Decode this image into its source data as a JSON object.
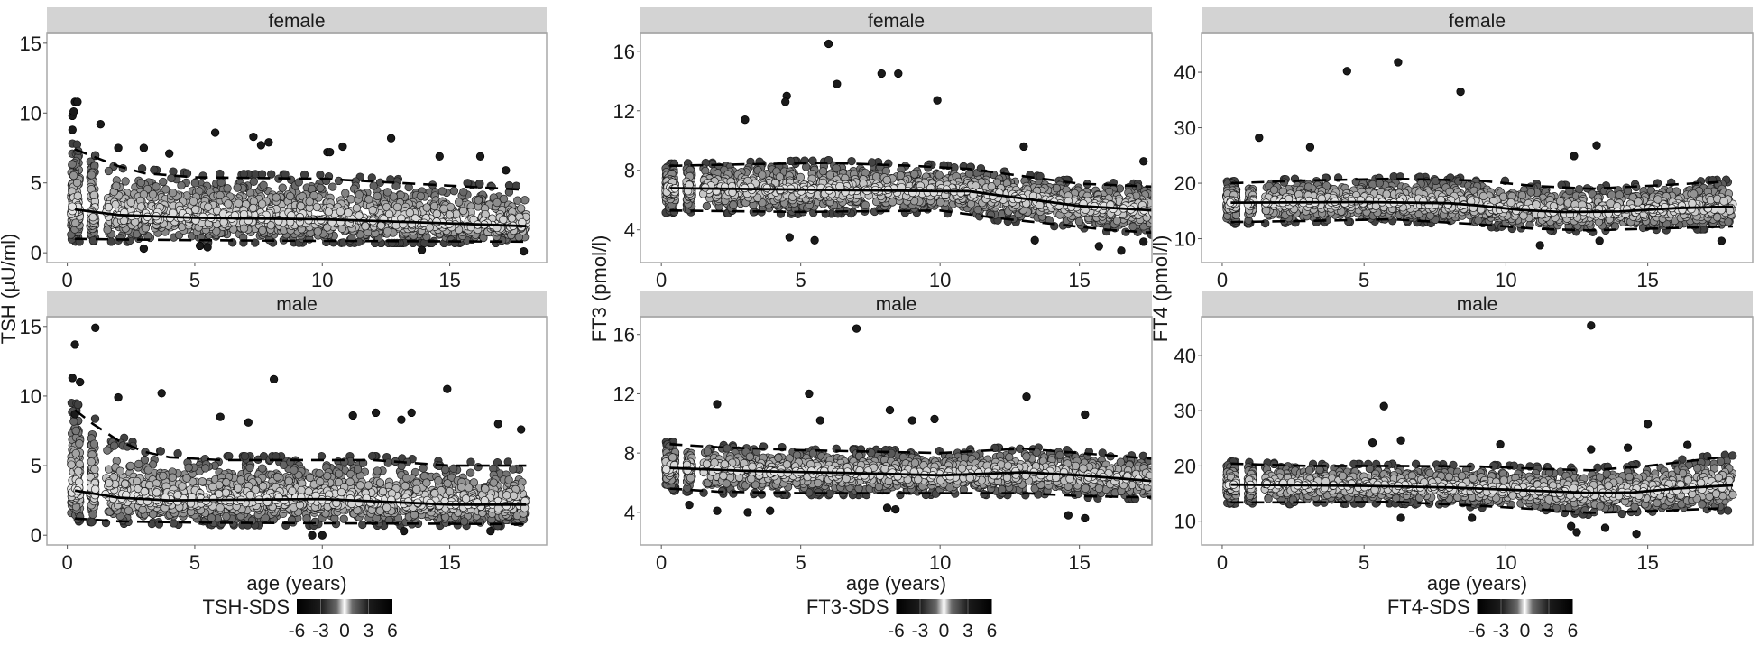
{
  "chart_data": [
    {
      "type": "scatter",
      "ylabel": "TSH (µU/ml)",
      "xlabel": "age (years)",
      "xlim": [
        -0.8,
        18.8
      ],
      "ylim": [
        -0.7,
        15.7
      ],
      "xticks": [
        "0",
        "5",
        "10",
        "15"
      ],
      "xtick_values": [
        0,
        5,
        10,
        15
      ],
      "yticks": [
        "0",
        "5",
        "10",
        "15"
      ],
      "ytick_values": [
        0,
        5,
        10,
        15
      ],
      "grid": false,
      "legend": {
        "title": "TSH-SDS",
        "ticks": [
          "-6",
          "-3",
          "0",
          "3",
          "6"
        ],
        "tick_values": [
          -6,
          -3,
          0,
          3,
          6
        ],
        "placement": "bottom",
        "colors": [
          "#000000",
          "#ffffff",
          "#000000"
        ]
      },
      "facets": [
        {
          "label": "female",
          "median": [
            [
              0.3,
              3.1
            ],
            [
              2,
              2.7
            ],
            [
              5,
              2.5
            ],
            [
              10,
              2.4
            ],
            [
              15,
              2.1
            ],
            [
              18,
              1.9
            ]
          ],
          "upper_dashed": [
            [
              0.3,
              7.4
            ],
            [
              1,
              6.9
            ],
            [
              2,
              6.2
            ],
            [
              3,
              5.7
            ],
            [
              5,
              5.4
            ],
            [
              10,
              5.3
            ],
            [
              13,
              5.0
            ],
            [
              15,
              4.8
            ],
            [
              18,
              4.5
            ]
          ],
          "lower_dashed": [
            [
              0.3,
              1.0
            ],
            [
              2,
              0.95
            ],
            [
              5,
              0.9
            ],
            [
              10,
              0.85
            ],
            [
              18,
              0.8
            ]
          ],
          "outliers": [
            [
              0.2,
              9.8
            ],
            [
              0.25,
              10.1
            ],
            [
              0.3,
              10.8
            ],
            [
              0.4,
              10.8
            ],
            [
              0.2,
              8.8
            ],
            [
              1.3,
              9.2
            ],
            [
              5.8,
              8.6
            ],
            [
              7.3,
              8.3
            ],
            [
              7.6,
              7.7
            ],
            [
              7.9,
              7.9
            ],
            [
              10.2,
              7.2
            ],
            [
              10.3,
              7.2
            ],
            [
              10.8,
              7.6
            ],
            [
              12.7,
              8.2
            ],
            [
              14.6,
              6.9
            ],
            [
              16.2,
              6.9
            ],
            [
              3,
              7.5
            ],
            [
              2,
              7.5
            ],
            [
              4,
              7.1
            ],
            [
              17.2,
              5.9
            ],
            [
              17.9,
              0.1
            ],
            [
              13.9,
              0.2
            ],
            [
              3,
              0.3
            ],
            [
              5.5,
              0.4
            ],
            [
              5.2,
              0.5
            ]
          ]
        },
        {
          "label": "male",
          "median": [
            [
              0.3,
              3.2
            ],
            [
              2,
              2.7
            ],
            [
              4,
              2.5
            ],
            [
              10,
              2.6
            ],
            [
              15,
              2.2
            ],
            [
              18,
              2.2
            ]
          ],
          "upper_dashed": [
            [
              0.3,
              9.0
            ],
            [
              1,
              8.0
            ],
            [
              2,
              6.8
            ],
            [
              3,
              6.0
            ],
            [
              4,
              5.6
            ],
            [
              6,
              5.4
            ],
            [
              12,
              5.4
            ],
            [
              15,
              5.0
            ],
            [
              18,
              5.0
            ]
          ],
          "lower_dashed": [
            [
              0.3,
              1.2
            ],
            [
              2,
              1.0
            ],
            [
              5,
              0.9
            ],
            [
              18,
              0.8
            ]
          ],
          "outliers": [
            [
              0.3,
              13.7
            ],
            [
              1.1,
              14.9
            ],
            [
              0.2,
              11.3
            ],
            [
              0.5,
              11.0
            ],
            [
              0.3,
              8.7
            ],
            [
              2,
              9.9
            ],
            [
              3.7,
              10.2
            ],
            [
              8.1,
              11.2
            ],
            [
              14.9,
              10.5
            ],
            [
              6,
              8.5
            ],
            [
              7.1,
              8.1
            ],
            [
              11.2,
              8.6
            ],
            [
              12.1,
              8.8
            ],
            [
              13.1,
              8.3
            ],
            [
              13.5,
              8.8
            ],
            [
              16.9,
              8.0
            ],
            [
              17.8,
              7.6
            ],
            [
              9.6,
              0.0
            ],
            [
              10,
              0.0
            ],
            [
              13.2,
              0.3
            ],
            [
              16.6,
              0.3
            ]
          ]
        }
      ]
    },
    {
      "type": "scatter",
      "ylabel": "FT3 (pmol/l)",
      "xlabel": "age (years)",
      "xlim": [
        -0.75,
        17.6
      ],
      "ylim": [
        1.8,
        17.2
      ],
      "xticks": [
        "0",
        "5",
        "10",
        "15"
      ],
      "xtick_values": [
        0,
        5,
        10,
        15
      ],
      "yticks": [
        "4",
        "8",
        "12",
        "16"
      ],
      "ytick_values": [
        4,
        8,
        12,
        16
      ],
      "grid": false,
      "legend": {
        "title": "FT3-SDS",
        "ticks": [
          "-6",
          "-3",
          "0",
          "3",
          "6"
        ],
        "tick_values": [
          -6,
          -3,
          0,
          3,
          6
        ],
        "placement": "bottom",
        "colors": [
          "#000000",
          "#ffffff",
          "#000000"
        ]
      },
      "facets": [
        {
          "label": "female",
          "median": [
            [
              0.3,
              6.8
            ],
            [
              5,
              6.7
            ],
            [
              10,
              6.6
            ],
            [
              11,
              6.6
            ],
            [
              13,
              6.1
            ],
            [
              15,
              5.6
            ],
            [
              17.7,
              5.3
            ]
          ],
          "upper_dashed": [
            [
              0.3,
              8.3
            ],
            [
              3,
              8.4
            ],
            [
              6,
              8.5
            ],
            [
              9,
              8.3
            ],
            [
              11,
              8.1
            ],
            [
              13,
              7.6
            ],
            [
              15,
              7.1
            ],
            [
              17.7,
              6.9
            ]
          ],
          "lower_dashed": [
            [
              0.3,
              5.3
            ],
            [
              5,
              5.2
            ],
            [
              10,
              5.3
            ],
            [
              12,
              4.8
            ],
            [
              14,
              4.4
            ],
            [
              16,
              4.0
            ],
            [
              17.7,
              3.8
            ]
          ],
          "outliers": [
            [
              6.0,
              16.5
            ],
            [
              6.3,
              13.8
            ],
            [
              7.9,
              14.5
            ],
            [
              8.5,
              14.5
            ],
            [
              4.5,
              13.0
            ],
            [
              4.45,
              12.6
            ],
            [
              3.0,
              11.4
            ],
            [
              9.9,
              12.7
            ],
            [
              13.0,
              9.6
            ],
            [
              17.3,
              8.6
            ],
            [
              4.6,
              3.5
            ],
            [
              5.5,
              3.3
            ],
            [
              13.4,
              3.3
            ],
            [
              15.7,
              2.9
            ],
            [
              16.5,
              2.6
            ],
            [
              17.3,
              3.2
            ]
          ]
        },
        {
          "label": "male",
          "median": [
            [
              0.3,
              7.0
            ],
            [
              3,
              6.8
            ],
            [
              8,
              6.6
            ],
            [
              10,
              6.5
            ],
            [
              13,
              6.7
            ],
            [
              15,
              6.5
            ],
            [
              17.7,
              6.1
            ]
          ],
          "upper_dashed": [
            [
              0.3,
              8.6
            ],
            [
              2,
              8.4
            ],
            [
              5,
              8.2
            ],
            [
              10,
              8.0
            ],
            [
              13,
              8.3
            ],
            [
              15,
              8.0
            ],
            [
              17.7,
              7.6
            ]
          ],
          "lower_dashed": [
            [
              0.3,
              5.6
            ],
            [
              2,
              5.4
            ],
            [
              5,
              5.3
            ],
            [
              10,
              5.3
            ],
            [
              13,
              5.3
            ],
            [
              15,
              5.1
            ],
            [
              17.7,
              5.0
            ]
          ],
          "outliers": [
            [
              7.0,
              16.4
            ],
            [
              5.3,
              12.0
            ],
            [
              13.1,
              11.8
            ],
            [
              2.0,
              11.3
            ],
            [
              8.2,
              10.9
            ],
            [
              5.7,
              10.2
            ],
            [
              9.0,
              10.2
            ],
            [
              15.2,
              10.6
            ],
            [
              9.8,
              10.3
            ],
            [
              14.6,
              3.8
            ],
            [
              15.2,
              3.6
            ],
            [
              3.1,
              4.0
            ],
            [
              3.9,
              4.1
            ],
            [
              2.0,
              4.1
            ],
            [
              1.0,
              4.5
            ],
            [
              8.1,
              4.3
            ],
            [
              8.4,
              4.2
            ]
          ]
        }
      ]
    },
    {
      "type": "scatter",
      "ylabel": "FT4 (pmol/l)",
      "xlabel": "age (years)",
      "xlim": [
        -0.73,
        18.7
      ],
      "ylim": [
        5.7,
        47
      ],
      "xticks": [
        "0",
        "5",
        "10",
        "15"
      ],
      "xtick_values": [
        0,
        5,
        10,
        15
      ],
      "yticks": [
        "10",
        "20",
        "30",
        "40"
      ],
      "ytick_values": [
        10,
        20,
        30,
        40
      ],
      "grid": false,
      "legend": {
        "title": "FT4-SDS",
        "ticks": [
          "-6",
          "-3",
          "0",
          "3",
          "6"
        ],
        "tick_values": [
          -6,
          -3,
          0,
          3,
          6
        ],
        "placement": "bottom",
        "colors": [
          "#000000",
          "#ffffff",
          "#000000"
        ]
      },
      "facets": [
        {
          "label": "female",
          "median": [
            [
              0.3,
              16.5
            ],
            [
              5,
              16.6
            ],
            [
              8,
              16.4
            ],
            [
              9,
              16.0
            ],
            [
              10.5,
              15.2
            ],
            [
              12,
              14.8
            ],
            [
              14,
              14.9
            ],
            [
              16,
              15.5
            ],
            [
              18,
              15.8
            ]
          ],
          "upper_dashed": [
            [
              0.3,
              20.0
            ],
            [
              3,
              20.5
            ],
            [
              6,
              20.8
            ],
            [
              9,
              20.5
            ],
            [
              11,
              19.5
            ],
            [
              13,
              19.0
            ],
            [
              15,
              19.5
            ],
            [
              17.5,
              20.2
            ]
          ],
          "lower_dashed": [
            [
              0.3,
              13.0
            ],
            [
              3,
              13.2
            ],
            [
              6,
              13.5
            ],
            [
              9,
              12.6
            ],
            [
              11,
              11.8
            ],
            [
              13,
              11.5
            ],
            [
              15,
              11.8
            ],
            [
              18,
              12.2
            ]
          ],
          "outliers": [
            [
              4.4,
              40.2
            ],
            [
              6.2,
              41.8
            ],
            [
              8.4,
              36.5
            ],
            [
              1.3,
              28.2
            ],
            [
              3.1,
              26.5
            ],
            [
              13.2,
              26.8
            ],
            [
              12.4,
              24.9
            ],
            [
              17.6,
              9.6
            ],
            [
              11.2,
              8.8
            ],
            [
              13.3,
              9.6
            ]
          ]
        },
        {
          "label": "male",
          "median": [
            [
              0.3,
              16.6
            ],
            [
              5,
              16.4
            ],
            [
              8,
              16.1
            ],
            [
              10,
              15.7
            ],
            [
              13,
              15.1
            ],
            [
              14.5,
              15.2
            ],
            [
              16,
              15.9
            ],
            [
              18,
              16.5
            ]
          ],
          "upper_dashed": [
            [
              0.3,
              20.4
            ],
            [
              3,
              20.0
            ],
            [
              6,
              20.0
            ],
            [
              9,
              19.9
            ],
            [
              11,
              19.5
            ],
            [
              13,
              19.2
            ],
            [
              15,
              20.0
            ],
            [
              17.5,
              21.5
            ]
          ],
          "lower_dashed": [
            [
              0.3,
              13.4
            ],
            [
              3,
              13.4
            ],
            [
              6,
              13.5
            ],
            [
              9,
              12.8
            ],
            [
              11,
              12.2
            ],
            [
              13,
              11.5
            ],
            [
              15,
              11.8
            ],
            [
              17.5,
              12.3
            ]
          ],
          "outliers": [
            [
              13.0,
              45.4
            ],
            [
              5.7,
              30.8
            ],
            [
              15.0,
              27.6
            ],
            [
              6.3,
              24.6
            ],
            [
              5.3,
              24.2
            ],
            [
              9.8,
              23.9
            ],
            [
              16.4,
              23.8
            ],
            [
              13.0,
              23.0
            ],
            [
              14.3,
              23.3
            ],
            [
              14.6,
              7.7
            ],
            [
              12.5,
              8.0
            ],
            [
              12.3,
              9.1
            ],
            [
              13.5,
              8.8
            ],
            [
              6.3,
              10.6
            ],
            [
              8.8,
              10.6
            ]
          ]
        }
      ]
    }
  ],
  "colors": {
    "strip_fill": "#d3d3d3",
    "panel_border": "#a8a8a8",
    "point_stroke": "#1e1e1e",
    "line": "#000000"
  }
}
